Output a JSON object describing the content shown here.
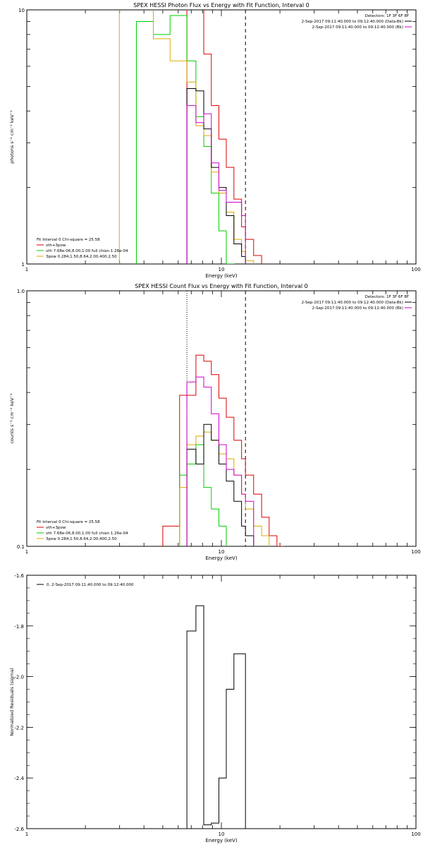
{
  "chart_data": [
    {
      "type": "line",
      "title": "SPEX HESSI Photon Flux vs Energy with Fit Function, Interval 0",
      "xlabel": "Energy (keV)",
      "ylabel": "photons s⁻¹ cm⁻² keV⁻¹",
      "xscale": "log",
      "yscale": "log",
      "xlim": [
        1,
        100
      ],
      "ylim": [
        1,
        10
      ],
      "x_tick_labels": [
        "1",
        "10",
        "100"
      ],
      "y_tick_labels": [
        "1",
        "10"
      ],
      "detectors_text": "Detectors: 1F 3F 6F 8F",
      "legend_top": [
        {
          "text": "2-Sep-2017 09:11:40.000 to 09:12:40.000 (Data-Bk)",
          "color": "#000000"
        },
        {
          "text": "2-Sep-2017 09:11:40.000 to 09:12:40.000 (Bk)",
          "color": "#cc00cc"
        }
      ],
      "fit_header": "Fit Interval 0   Chi-square = 25.58",
      "legend_bottom": [
        {
          "text": "vth+3pow",
          "color": "#dd0000"
        },
        {
          "text": "vth 7.68e-06,8.00,1.00  full chian 1.26e-04",
          "color": "#00cc00"
        },
        {
          "text": "3pow 0.284,1.50,8.64,2.00,400,2.50",
          "color": "#ddaa00"
        }
      ],
      "vlines": [
        {
          "x": 6.65,
          "style": "dotted",
          "color": "#cc00cc"
        },
        {
          "x": 13.3,
          "style": "dashed",
          "color": "#000000"
        }
      ],
      "bin_edges": [
        2.99,
        3.66,
        4.47,
        5.45,
        6.65,
        7.4,
        8.12,
        8.88,
        9.71,
        10.6,
        11.6,
        12.7,
        13.3,
        14.65,
        16.1,
        17.6,
        19.3
      ],
      "series": [
        {
          "name": "vth+3pow",
          "color": "#dd0000",
          "values": [
            null,
            null,
            null,
            null,
            10.2,
            10.1,
            6.7,
            4.2,
            3.1,
            2.4,
            1.8,
            1.4,
            1.25,
            1.08,
            null,
            null
          ]
        },
        {
          "name": "",
          "color": "#00cc00",
          "values": [
            null,
            9.0,
            8.0,
            9.5,
            6.3,
            3.8,
            2.9,
            1.9,
            1.35,
            1.0,
            null,
            null,
            null,
            null,
            null,
            null
          ]
        },
        {
          "name": "",
          "color": "#ddaa00",
          "values": [
            10.2,
            10.2,
            7.7,
            6.3,
            5.2,
            3.5,
            3.2,
            2.3,
            1.9,
            1.6,
            1.25,
            1.12,
            1.03,
            null,
            null,
            null
          ]
        },
        {
          "name": "",
          "color": "#000000",
          "values": [
            null,
            null,
            null,
            null,
            4.9,
            4.8,
            3.4,
            2.4,
            2.0,
            1.55,
            1.2,
            1.07,
            null,
            null,
            null,
            null
          ]
        },
        {
          "name": "",
          "color": "#cc00cc",
          "values": [
            null,
            null,
            null,
            null,
            4.2,
            3.6,
            3.9,
            2.5,
            1.95,
            1.75,
            1.75,
            1.55,
            null,
            null,
            null,
            null
          ]
        }
      ]
    },
    {
      "type": "line",
      "title": "SPEX HESSI Count Flux vs Energy with Fit Function, Interval 0",
      "xlabel": "Energy (keV)",
      "ylabel": "counts s⁻¹ cm⁻² keV⁻¹",
      "xscale": "log",
      "yscale": "log",
      "xlim": [
        1,
        100
      ],
      "ylim": [
        0.1,
        1.0
      ],
      "x_tick_labels": [
        "1",
        "10",
        "100"
      ],
      "y_tick_labels": [
        "0.1",
        "1.0"
      ],
      "detectors_text": "Detectors: 1F 3F 6F 8F",
      "legend_top": [
        {
          "text": "2-Sep-2017 09:11:40.000 to 09:12:40.000 (Data-Bk)",
          "color": "#000000"
        },
        {
          "text": "2-Sep-2017 09:11:40.000 to 09:12:40.000 (Bk)",
          "color": "#cc00cc"
        }
      ],
      "fit_header": "Fit Interval 0   Chi-square = 25.58",
      "legend_bottom": [
        {
          "text": "vth+3pow",
          "color": "#dd0000"
        },
        {
          "text": "vth 7.68e-06,8.00,1.00  full chian 1.26e-04",
          "color": "#00cc00"
        },
        {
          "text": "3pow 0.284,1.50,8.64,2.00,400,2.50",
          "color": "#ddaa00"
        }
      ],
      "vlines": [
        {
          "x": 6.65,
          "style": "dotted",
          "color": "#000000"
        },
        {
          "x": 13.3,
          "style": "dashed",
          "color": "#000000"
        }
      ],
      "bin_edges": [
        5.0,
        5.45,
        6.1,
        6.65,
        7.4,
        8.12,
        8.88,
        9.71,
        10.6,
        11.6,
        12.7,
        13.3,
        14.65,
        16.1,
        17.6,
        19.3,
        21.0
      ],
      "series": [
        {
          "name": "vth+3pow",
          "color": "#dd0000",
          "values": [
            0.12,
            0.12,
            0.39,
            0.39,
            0.56,
            0.53,
            0.47,
            0.38,
            0.32,
            0.26,
            0.22,
            0.19,
            0.16,
            0.13,
            0.11,
            0.1
          ]
        },
        {
          "name": "",
          "color": "#00cc00",
          "values": [
            null,
            null,
            0.19,
            0.21,
            0.25,
            0.17,
            0.14,
            0.12,
            null,
            null,
            null,
            null,
            null,
            null,
            null,
            null
          ]
        },
        {
          "name": "",
          "color": "#ddaa00",
          "values": [
            null,
            null,
            0.17,
            0.25,
            0.27,
            0.28,
            0.26,
            0.23,
            0.22,
            0.19,
            0.16,
            0.14,
            0.12,
            0.11,
            null,
            null
          ]
        },
        {
          "name": "",
          "color": "#000000",
          "values": [
            null,
            null,
            null,
            0.24,
            0.21,
            0.3,
            0.26,
            0.21,
            0.18,
            0.15,
            0.12,
            0.11,
            null,
            null,
            null,
            null
          ]
        },
        {
          "name": "",
          "color": "#cc00cc",
          "values": [
            null,
            null,
            null,
            0.44,
            0.46,
            0.42,
            0.33,
            0.25,
            0.2,
            0.19,
            0.16,
            0.15,
            null,
            null,
            null,
            null
          ]
        }
      ]
    },
    {
      "type": "line",
      "title": "",
      "xlabel": "Energy (keV)",
      "ylabel": "Normalized Residuals (sigma)",
      "xscale": "log",
      "yscale": "linear",
      "xlim": [
        1,
        100
      ],
      "ylim": [
        -2.6,
        -1.6
      ],
      "x_tick_labels": [
        "1",
        "10",
        "100"
      ],
      "y_tick_labels": [
        "-2.6",
        "-2.4",
        "-2.2",
        "-2.0",
        "-1.8",
        "-1.6"
      ],
      "legend": [
        {
          "text": "0,  2-Sep-2017 09:11:40.000 to 09:12:40.000",
          "color": "#000000"
        }
      ],
      "bin_edges": [
        6.65,
        7.4,
        8.12,
        8.88,
        9.71,
        10.6,
        11.6,
        12.7,
        13.3
      ],
      "series": [
        {
          "name": "",
          "color": "#000000",
          "values": [
            -1.82,
            -1.72,
            -2.585,
            -2.578,
            -2.4,
            -2.05,
            -1.91,
            -1.91
          ]
        }
      ]
    }
  ]
}
